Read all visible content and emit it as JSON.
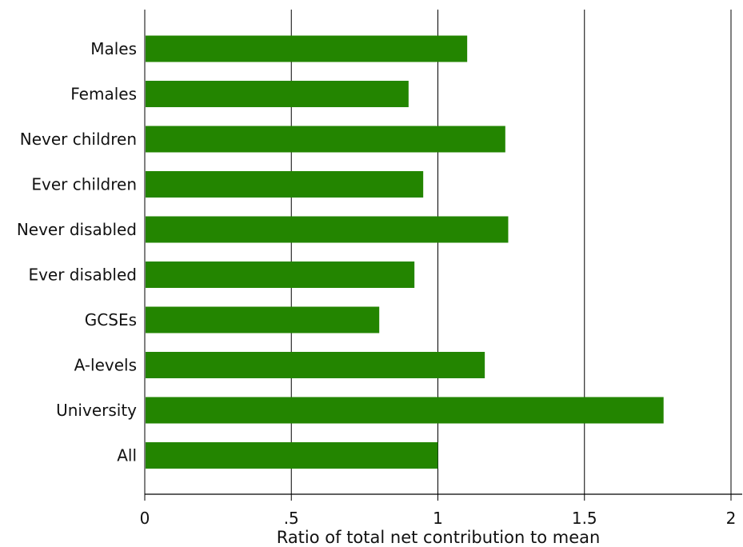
{
  "chart_data": {
    "type": "bar",
    "orientation": "horizontal",
    "categories": [
      "Males",
      "Females",
      "Never children",
      "Ever children",
      "Never disabled",
      "Ever disabled",
      "GCSEs",
      "A-levels",
      "University",
      "All"
    ],
    "values": [
      1.1,
      0.9,
      1.23,
      0.95,
      1.24,
      0.92,
      0.8,
      1.16,
      1.77,
      1.0
    ],
    "xlabel": "Ratio of total net contribution to mean",
    "ylabel": "",
    "xlim": [
      0,
      2
    ],
    "xticks": [
      0,
      0.5,
      1,
      1.5,
      2
    ],
    "xtick_labels": [
      "0",
      ".5",
      "1",
      "1.5",
      "2"
    ],
    "grid": "vertical",
    "legend": "none",
    "bar_color": "#238500"
  }
}
